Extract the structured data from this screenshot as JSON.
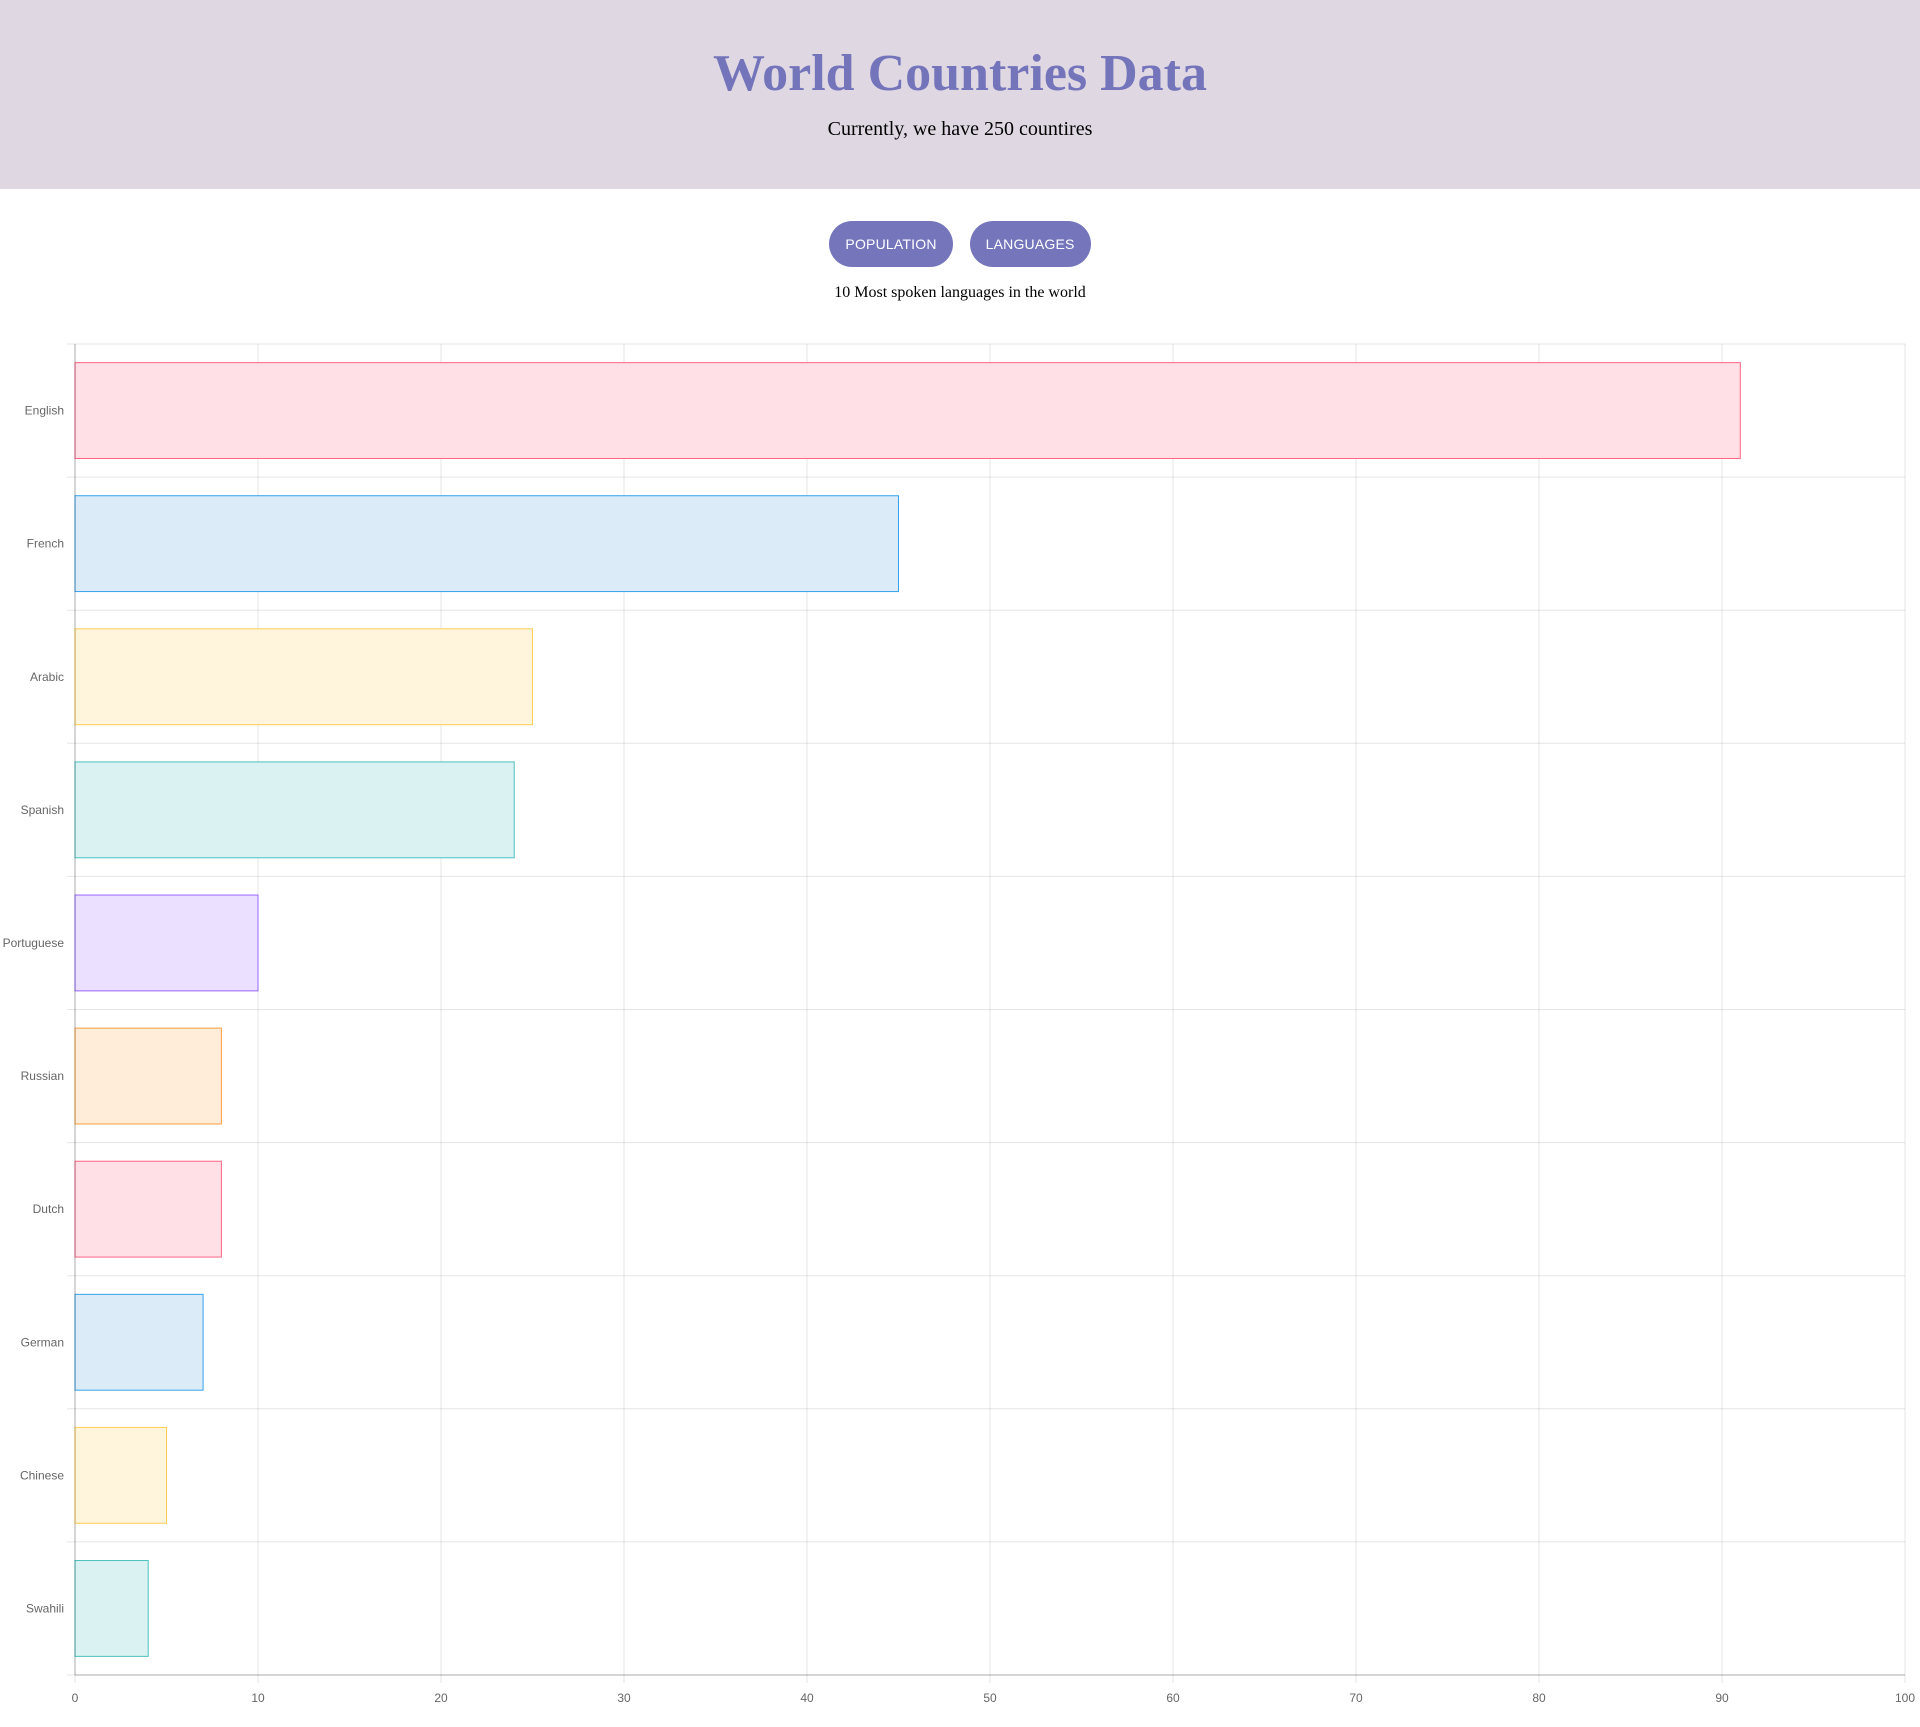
{
  "header": {
    "title": "World Countries Data",
    "subtitle": "Currently, we have 250 countires"
  },
  "buttons": {
    "population": "POPULATION",
    "languages": "LANGUAGES"
  },
  "colors": {
    "header_bg": "#dfd8e3",
    "accent": "#7575bc"
  },
  "chart_data": {
    "type": "bar",
    "orientation": "horizontal",
    "title": "10 Most spoken languages in the world",
    "categories": [
      "English",
      "French",
      "Arabic",
      "Spanish",
      "Portuguese",
      "Russian",
      "Dutch",
      "German",
      "Chinese",
      "Swahili"
    ],
    "values": [
      91,
      45,
      25,
      24,
      10,
      8,
      8,
      7,
      5,
      4
    ],
    "xlim": [
      0,
      100
    ],
    "xticks": [
      0,
      10,
      20,
      30,
      40,
      50,
      60,
      70,
      80,
      90,
      100
    ],
    "grid": true,
    "legend": "none",
    "bar_fill_colors": [
      "#ffe0e6",
      "#dbecf8",
      "#fff5dd",
      "#dbf2f2",
      "#ebe0ff",
      "#ffecd9",
      "#ffe0e6",
      "#dbecf8",
      "#fff5dd",
      "#dbf2f2"
    ],
    "bar_border_colors": [
      "#ff6384",
      "#36a2eb",
      "#ffcd56",
      "#4bc0c0",
      "#9966ff",
      "#ff9f40",
      "#ff6384",
      "#36a2eb",
      "#ffcd56",
      "#4bc0c0"
    ]
  }
}
